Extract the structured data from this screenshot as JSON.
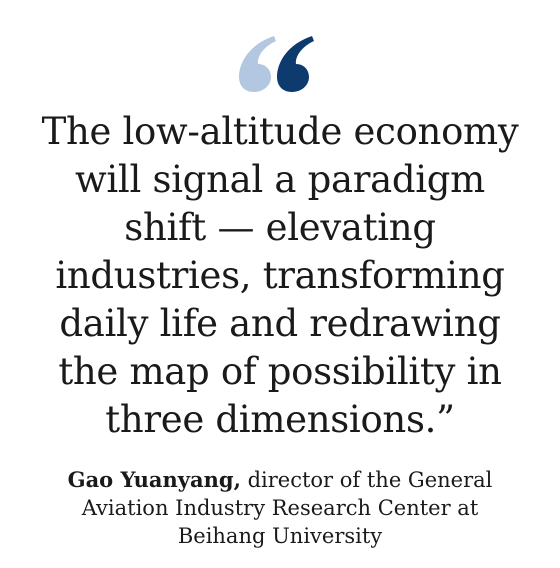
{
  "quote": {
    "lines": [
      "The low-altitude economy",
      "will signal a paradigm",
      "shift — elevating",
      "industries, transforming",
      "daily life and redrawing",
      "the map of possibility in",
      "three dimensions.”"
    ]
  },
  "attribution": {
    "name": "Gao Yuanyang,",
    "lines": [
      "director of the General",
      "Aviation Industry Research Center at",
      "Beihang University"
    ]
  }
}
